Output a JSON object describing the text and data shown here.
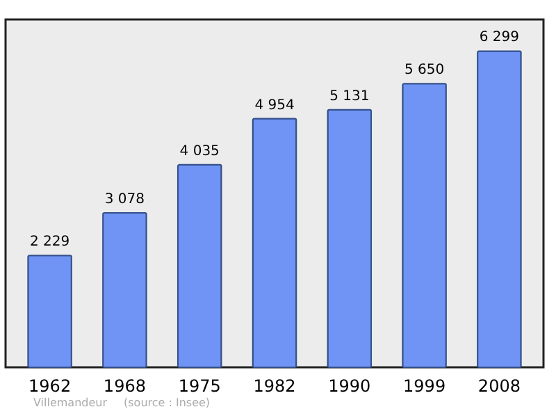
{
  "chart_data": {
    "type": "bar",
    "categories": [
      "1962",
      "1968",
      "1975",
      "1982",
      "1990",
      "1999",
      "2008"
    ],
    "values": [
      2229,
      3078,
      4035,
      4954,
      5131,
      5650,
      6299
    ],
    "value_labels": [
      "2 229",
      "3 078",
      "4 035",
      "4 954",
      "5 131",
      "5 650",
      "6 299"
    ],
    "color": "#7094f5",
    "grid": false,
    "annotations": [
      "Villemandeur",
      "(source : Insee)"
    ]
  }
}
